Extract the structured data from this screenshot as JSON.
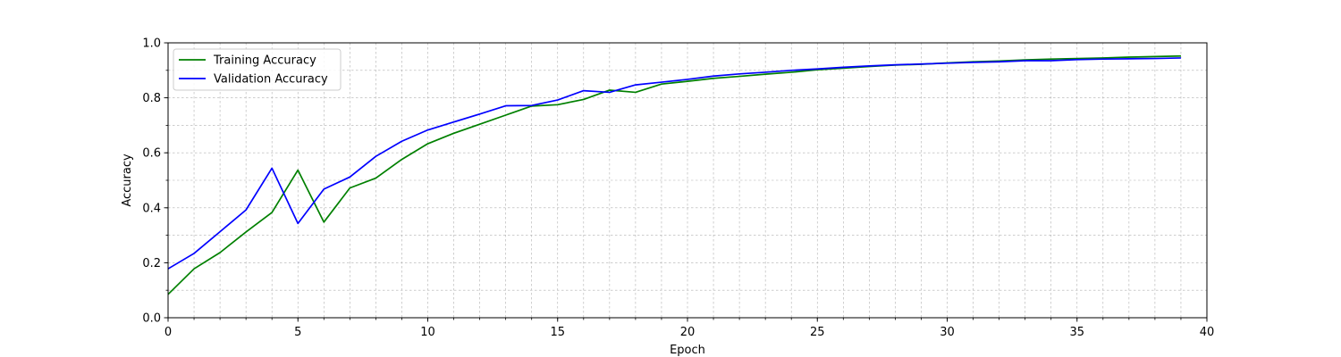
{
  "chart_data": {
    "type": "line",
    "xlabel": "Epoch",
    "ylabel": "Accuracy",
    "xlim": [
      0,
      40
    ],
    "ylim": [
      0,
      1.0
    ],
    "x_ticks": [
      0,
      5,
      10,
      15,
      20,
      25,
      30,
      35,
      40
    ],
    "x_tick_labels": [
      "0",
      "5",
      "10",
      "15",
      "20",
      "25",
      "30",
      "35",
      "40"
    ],
    "x_minor_step": 1,
    "y_ticks": [
      0.0,
      0.2,
      0.4,
      0.6,
      0.8,
      1.0
    ],
    "y_tick_labels": [
      "0.0",
      "0.2",
      "0.4",
      "0.6",
      "0.8",
      "1.0"
    ],
    "y_minor_step": 0.1,
    "grid": true,
    "legend_position": "top-left",
    "x": [
      0,
      1,
      2,
      3,
      4,
      5,
      6,
      7,
      8,
      9,
      10,
      11,
      12,
      13,
      14,
      15,
      16,
      17,
      18,
      19,
      20,
      21,
      22,
      23,
      24,
      25,
      26,
      27,
      28,
      29,
      30,
      31,
      32,
      33,
      34,
      35,
      36,
      37,
      38,
      39
    ],
    "series": [
      {
        "name": "Training Accuracy",
        "color": "#008000",
        "values": [
          0.085,
          0.178,
          0.237,
          0.312,
          0.383,
          0.537,
          0.348,
          0.472,
          0.508,
          0.576,
          0.633,
          0.671,
          0.704,
          0.737,
          0.77,
          0.775,
          0.794,
          0.828,
          0.82,
          0.85,
          0.86,
          0.871,
          0.878,
          0.886,
          0.893,
          0.902,
          0.908,
          0.914,
          0.919,
          0.922,
          0.927,
          0.931,
          0.934,
          0.938,
          0.941,
          0.943,
          0.945,
          0.948,
          0.95,
          0.952
        ]
      },
      {
        "name": "Validation Accuracy",
        "color": "#0000ff",
        "values": [
          0.178,
          0.234,
          0.313,
          0.392,
          0.544,
          0.343,
          0.468,
          0.512,
          0.587,
          0.642,
          0.683,
          0.712,
          0.741,
          0.771,
          0.772,
          0.792,
          0.826,
          0.82,
          0.847,
          0.857,
          0.867,
          0.879,
          0.887,
          0.893,
          0.9,
          0.905,
          0.911,
          0.916,
          0.92,
          0.923,
          0.926,
          0.929,
          0.931,
          0.935,
          0.935,
          0.939,
          0.941,
          0.942,
          0.943,
          0.945
        ]
      }
    ]
  }
}
